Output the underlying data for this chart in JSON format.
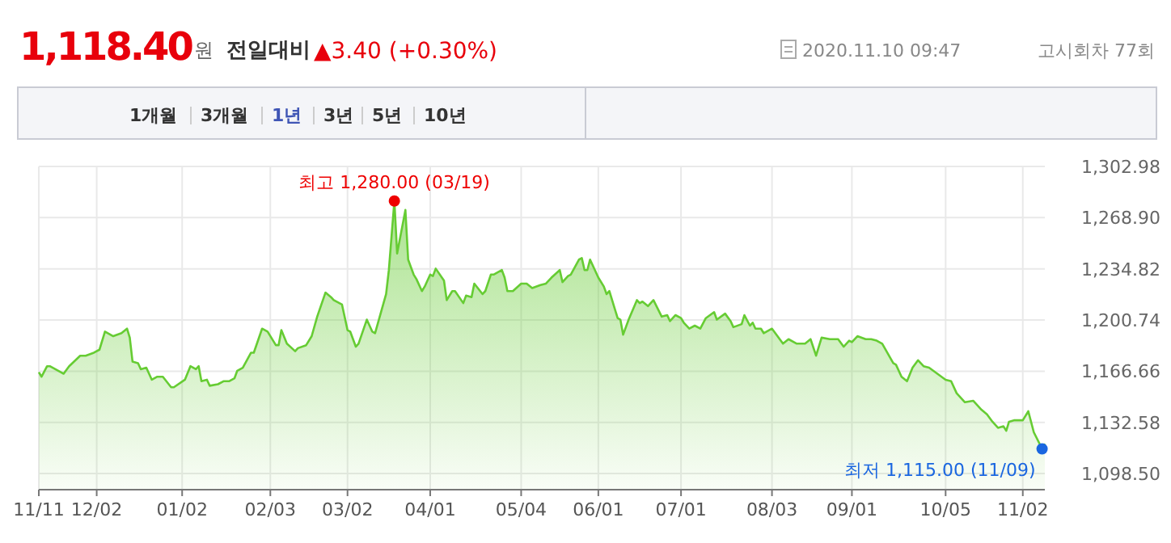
{
  "chart_data": {
    "type": "area",
    "title": "1,118.40",
    "annotations": [
      "원",
      "전일대비",
      "▲3.40 (+0.30%)",
      "2020.11.10 09:47",
      "고시회차 77회",
      "1개월",
      "3개월",
      "1년",
      "3년",
      "5년",
      "10년",
      {
        "text": "최고 1,280.00 (03/19)",
        "x": "2020-03-19",
        "y": 1280
      },
      {
        "text": "최저 1,115.00 (11/09)",
        "x": "2020-11-09",
        "y": 1115
      }
    ],
    "x": [
      "2019-11-11",
      "2019-11-12",
      "2019-11-14",
      "2019-11-15",
      "2019-11-19",
      "2019-11-20",
      "2019-11-22",
      "2019-11-26",
      "2019-11-28",
      "2019-12-01",
      "2019-12-03",
      "2019-12-05",
      "2019-12-08",
      "2019-12-11",
      "2019-12-13",
      "2019-12-14",
      "2019-12-15",
      "2019-12-17",
      "2019-12-18",
      "2019-12-20",
      "2019-12-22",
      "2019-12-24",
      "2019-12-26",
      "2019-12-29",
      "2019-12-30",
      "2020-01-03",
      "2020-01-05",
      "2020-01-07",
      "2020-01-08",
      "2020-01-09",
      "2020-01-11",
      "2020-01-12",
      "2020-01-15",
      "2020-01-17",
      "2020-01-19",
      "2020-01-21",
      "2020-01-22",
      "2020-01-24",
      "2020-01-27",
      "2020-01-28",
      "2020-01-31",
      "2020-02-02",
      "2020-02-05",
      "2020-02-06",
      "2020-02-07",
      "2020-02-09",
      "2020-02-12",
      "2020-02-13",
      "2020-02-16",
      "2020-02-18",
      "2020-02-20",
      "2020-02-23",
      "2020-02-25",
      "2020-02-26",
      "2020-02-29",
      "2020-03-02",
      "2020-03-03",
      "2020-03-05",
      "2020-03-06",
      "2020-03-09",
      "2020-03-11",
      "2020-03-12",
      "2020-03-16",
      "2020-03-17",
      "2020-03-19",
      "2020-03-20",
      "2020-03-23",
      "2020-03-24",
      "2020-03-26",
      "2020-03-27",
      "2020-03-29",
      "2020-03-30",
      "2020-04-01",
      "2020-04-02",
      "2020-04-03",
      "2020-04-06",
      "2020-04-07",
      "2020-04-09",
      "2020-04-10",
      "2020-04-13",
      "2020-04-14",
      "2020-04-16",
      "2020-04-17",
      "2020-04-20",
      "2020-04-21",
      "2020-04-23",
      "2020-04-24",
      "2020-04-27",
      "2020-04-28",
      "2020-04-29",
      "2020-05-01",
      "2020-05-04",
      "2020-05-06",
      "2020-05-08",
      "2020-05-11",
      "2020-05-13",
      "2020-05-15",
      "2020-05-18",
      "2020-05-19",
      "2020-05-21",
      "2020-05-22",
      "2020-05-25",
      "2020-05-26",
      "2020-05-27",
      "2020-05-28",
      "2020-05-29",
      "2020-06-01",
      "2020-06-03",
      "2020-06-04",
      "2020-06-05",
      "2020-06-08",
      "2020-06-09",
      "2020-06-10",
      "2020-06-12",
      "2020-06-15",
      "2020-06-16",
      "2020-06-17",
      "2020-06-19",
      "2020-06-21",
      "2020-06-24",
      "2020-06-26",
      "2020-06-27",
      "2020-06-29",
      "2020-07-01",
      "2020-07-02",
      "2020-07-04",
      "2020-07-06",
      "2020-07-08",
      "2020-07-10",
      "2020-07-13",
      "2020-07-14",
      "2020-07-17",
      "2020-07-19",
      "2020-07-20",
      "2020-07-23",
      "2020-07-24",
      "2020-07-26",
      "2020-07-27",
      "2020-07-28",
      "2020-07-30",
      "2020-07-31",
      "2020-08-03",
      "2020-08-05",
      "2020-08-07",
      "2020-08-09",
      "2020-08-12",
      "2020-08-15",
      "2020-08-17",
      "2020-08-19",
      "2020-08-21",
      "2020-08-24",
      "2020-08-27",
      "2020-08-29",
      "2020-08-31",
      "2020-09-01",
      "2020-09-03",
      "2020-09-06",
      "2020-09-08",
      "2020-09-10",
      "2020-09-12",
      "2020-09-16",
      "2020-09-17",
      "2020-09-19",
      "2020-09-21",
      "2020-09-23",
      "2020-09-25",
      "2020-09-27",
      "2020-09-29",
      "2020-10-05",
      "2020-10-07",
      "2020-10-09",
      "2020-10-12",
      "2020-10-15",
      "2020-10-18",
      "2020-10-20",
      "2020-10-22",
      "2020-10-24",
      "2020-10-26",
      "2020-10-27",
      "2020-10-28",
      "2020-10-30",
      "2020-11-02",
      "2020-11-04",
      "2020-11-06",
      "2020-11-09",
      "2020-11-10"
    ],
    "series": [
      {
        "color": "#66cc33",
        "values": [
          1166,
          1163,
          1170,
          1170,
          1166,
          1165,
          1170,
          1177,
          1177,
          1179,
          1181,
          1193,
          1190,
          1192,
          1195,
          1189,
          1173,
          1172,
          1168,
          1169,
          1161,
          1163,
          1163,
          1156,
          1156,
          1161,
          1170,
          1168,
          1170,
          1160,
          1161,
          1157,
          1158,
          1160,
          1160,
          1162,
          1167,
          1169,
          1179,
          1179,
          1195,
          1193,
          1184,
          1184,
          1194,
          1185,
          1180,
          1182,
          1184,
          1190,
          1203,
          1219,
          1216,
          1214,
          1211,
          1194,
          1193,
          1183,
          1185,
          1201,
          1193,
          1192,
          1218,
          1234,
          1280,
          1245,
          1274,
          1241,
          1231,
          1228,
          1220,
          1223,
          1231,
          1230,
          1235,
          1227,
          1214,
          1220,
          1220,
          1212,
          1217,
          1216,
          1225,
          1218,
          1220,
          1231,
          1231,
          1234,
          1229,
          1220,
          1220,
          1225,
          1225,
          1222,
          1224,
          1225,
          1229,
          1234,
          1226,
          1230,
          1231,
          1241,
          1242,
          1234,
          1234,
          1241,
          1229,
          1223,
          1218,
          1220,
          1202,
          1201,
          1191,
          1201,
          1214,
          1212,
          1213,
          1210,
          1214,
          1203,
          1204,
          1200,
          1204,
          1202,
          1199,
          1195,
          1197,
          1195,
          1202,
          1206,
          1201,
          1205,
          1200,
          1196,
          1198,
          1204,
          1197,
          1199,
          1195,
          1195,
          1192,
          1195,
          1190,
          1185,
          1188,
          1185,
          1185,
          1188,
          1177,
          1189,
          1188,
          1188,
          1183,
          1187,
          1186,
          1190,
          1188,
          1188,
          1187,
          1185,
          1172,
          1171,
          1163,
          1160,
          1169,
          1174,
          1170,
          1169,
          1161,
          1160,
          1152,
          1146,
          1147,
          1141,
          1138,
          1133,
          1129,
          1130,
          1127,
          1133,
          1134,
          1134,
          1140,
          1126,
          1115,
          1118.4
        ]
      }
    ],
    "xlim": [
      "2019-11-11",
      "2020-11-10"
    ],
    "xticks": [
      {
        "value": "2019-11-11",
        "label": "11/11"
      },
      {
        "value": "2019-12-02",
        "label": "12/02"
      },
      {
        "value": "2020-01-02",
        "label": "01/02"
      },
      {
        "value": "2020-02-03",
        "label": "02/03"
      },
      {
        "value": "2020-03-02",
        "label": "03/02"
      },
      {
        "value": "2020-04-01",
        "label": "04/01"
      },
      {
        "value": "2020-05-04",
        "label": "05/04"
      },
      {
        "value": "2020-06-01",
        "label": "06/01"
      },
      {
        "value": "2020-07-01",
        "label": "07/01"
      },
      {
        "value": "2020-08-03",
        "label": "08/03"
      },
      {
        "value": "2020-09-01",
        "label": "09/01"
      },
      {
        "value": "2020-10-05",
        "label": "10/05"
      },
      {
        "value": "2020-11-02",
        "label": "11/02"
      }
    ],
    "ylim": [
      1087.8,
      1302.98
    ],
    "yticks": [
      {
        "value": 1098.5,
        "label": "1,098.50"
      },
      {
        "value": 1132.58,
        "label": "1,132.58"
      },
      {
        "value": 1166.66,
        "label": "1,166.66"
      },
      {
        "value": 1200.74,
        "label": "1,200.74"
      },
      {
        "value": 1234.82,
        "label": "1,234.82"
      },
      {
        "value": 1268.9,
        "label": "1,268.90"
      },
      {
        "value": 1302.98,
        "label": "1,302.98"
      }
    ],
    "grid": true
  }
}
